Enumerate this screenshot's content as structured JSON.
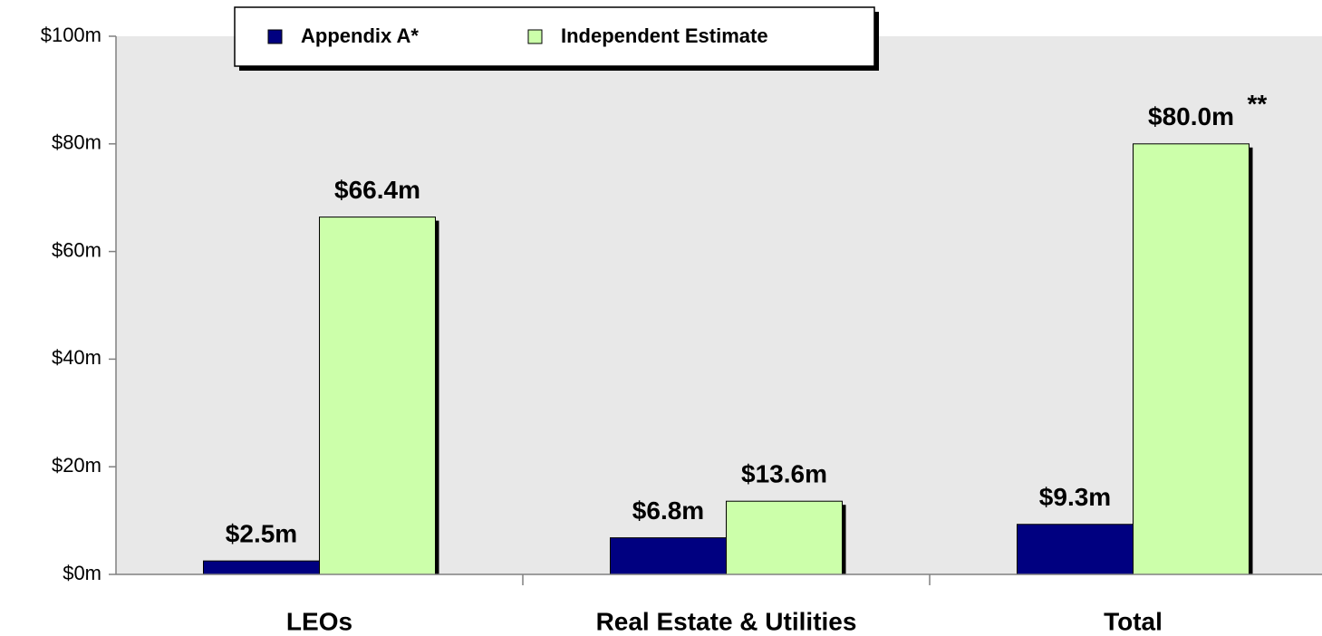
{
  "chart_data": {
    "type": "bar",
    "categories": [
      "LEOs",
      "Real Estate & Utilities",
      "Total"
    ],
    "series": [
      {
        "name": "Appendix A*",
        "color": "#000080",
        "values": [
          2.5,
          6.8,
          9.3
        ],
        "value_labels": [
          "$2.5m",
          "$6.8m",
          "$9.3m"
        ]
      },
      {
        "name": "Independent Estimate",
        "color": "#ccffaa",
        "values": [
          66.4,
          13.6,
          80.0
        ],
        "value_labels": [
          "$66.4m",
          "$13.6m",
          "$80.0m"
        ]
      }
    ],
    "annotation": "**",
    "ylim": [
      0,
      100
    ],
    "yticks": [
      {
        "value": 0,
        "label": "$0m"
      },
      {
        "value": 20,
        "label": "$20m"
      },
      {
        "value": 40,
        "label": "$40m"
      },
      {
        "value": 60,
        "label": "$60m"
      },
      {
        "value": 80,
        "label": "$80m"
      },
      {
        "value": 100,
        "label": "$100m"
      }
    ],
    "legend": "top"
  }
}
